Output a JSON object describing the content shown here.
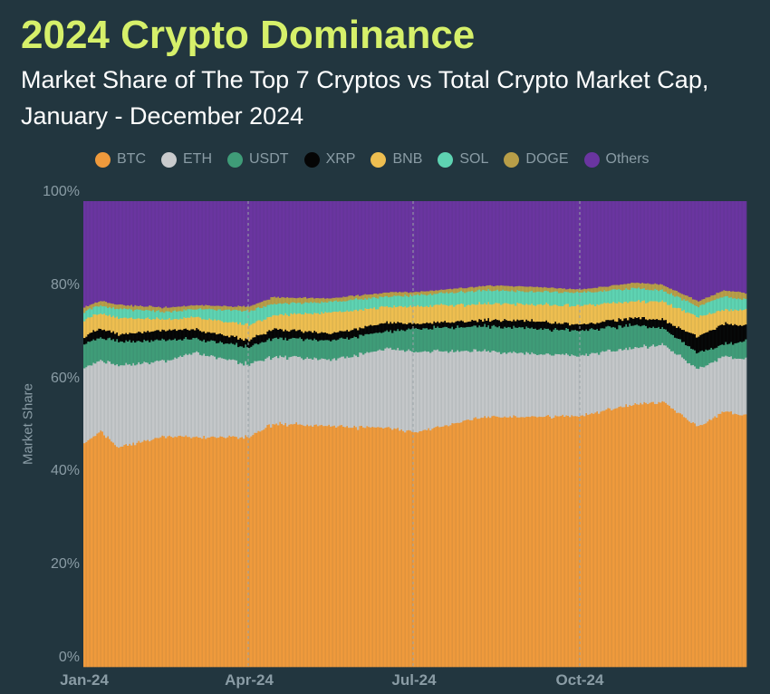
{
  "header": {
    "title": "2024 Crypto Dominance",
    "subtitle": "Market Share of The Top 7 Cryptos vs Total Crypto Market Cap, January - December 2024"
  },
  "chart_data": {
    "type": "area",
    "stacked": true,
    "title": "2024 Crypto Dominance",
    "subtitle": "Market Share of The Top 7 Cryptos vs Total Crypto Market Cap, January - December 2024",
    "xlabel": "",
    "ylabel": "Market Share",
    "ylim": [
      0,
      100
    ],
    "yticks": [
      "0%",
      "20%",
      "40%",
      "60%",
      "80%",
      "100%"
    ],
    "xticks": [
      {
        "label": "Jan-24",
        "day": 0
      },
      {
        "label": "Apr-24",
        "day": 91
      },
      {
        "label": "Jul-24",
        "day": 182
      },
      {
        "label": "Oct-24",
        "day": 274
      }
    ],
    "x_days_total": 366,
    "legend_position": "top",
    "grid": "vertical dashed at quarter starts",
    "x_sample_days": [
      0,
      9,
      18,
      46,
      61,
      91,
      104,
      136,
      169,
      182,
      223,
      246,
      274,
      304,
      319,
      339,
      353,
      365
    ],
    "cumulative_tops_note": "series values are individual shares (%) at each sample day; stacked in legend order",
    "series": [
      {
        "name": "BTC",
        "color": "#ef9a3c",
        "values": [
          47.9,
          50.8,
          47.3,
          49.6,
          49.5,
          49.4,
          52.3,
          51.7,
          51.4,
          50.4,
          53.9,
          53.7,
          53.9,
          56.6,
          57.0,
          51.4,
          54.9,
          53.9
        ]
      },
      {
        "name": "ETH",
        "color": "#c4c7c9",
        "values": [
          16.1,
          15.2,
          17.5,
          16.2,
          18.2,
          15.6,
          14.4,
          14.3,
          17.1,
          17.3,
          14.0,
          13.6,
          13.0,
          12.1,
          12.3,
          12.4,
          11.8,
          12.1
        ]
      },
      {
        "name": "USDT",
        "color": "#3f9c78",
        "values": [
          5.3,
          4.8,
          5.2,
          4.4,
          2.9,
          3.7,
          3.9,
          4.2,
          3.7,
          4.9,
          5.3,
          5.5,
          5.3,
          4.8,
          3.5,
          3.5,
          2.6,
          3.8
        ]
      },
      {
        "name": "XRP",
        "color": "#050505",
        "values": [
          1.5,
          2.0,
          1.6,
          2.2,
          1.9,
          1.5,
          2.0,
          1.4,
          1.9,
          1.1,
          1.3,
          1.7,
          1.3,
          1.6,
          1.7,
          3.5,
          4.4,
          3.4
        ]
      },
      {
        "name": "BNB",
        "color": "#eebe50",
        "values": [
          3.7,
          3.3,
          3.5,
          2.3,
          2.6,
          3.3,
          2.9,
          4.5,
          3.3,
          3.7,
          3.5,
          3.5,
          4.1,
          3.5,
          3.9,
          4.3,
          3.0,
          3.5
        ]
      },
      {
        "name": "SOL",
        "color": "#5ed3b2",
        "values": [
          2.0,
          1.5,
          1.9,
          1.6,
          1.8,
          3.0,
          2.5,
          2.3,
          2.2,
          2.4,
          2.9,
          2.7,
          2.8,
          2.7,
          2.5,
          2.3,
          2.9,
          2.3
        ]
      },
      {
        "name": "DOGE",
        "color": "#b89e48",
        "values": [
          0.9,
          1.0,
          0.8,
          0.9,
          0.8,
          0.9,
          1.4,
          0.8,
          0.9,
          0.7,
          1.0,
          1.0,
          0.7,
          1.2,
          1.2,
          1.2,
          1.3,
          1.4
        ]
      },
      {
        "name": "Others",
        "color": "#6a35a0",
        "values": [
          22.6,
          21.4,
          22.2,
          22.8,
          22.3,
          22.6,
          20.6,
          20.8,
          19.5,
          19.5,
          18.1,
          18.3,
          18.9,
          17.5,
          17.9,
          21.4,
          19.1,
          19.6
        ]
      }
    ]
  },
  "legend": [
    {
      "label": "BTC",
      "color": "#ef9a3c"
    },
    {
      "label": "ETH",
      "color": "#c9cbcd"
    },
    {
      "label": "USDT",
      "color": "#3f9c78"
    },
    {
      "label": "XRP",
      "color": "#050505"
    },
    {
      "label": "BNB",
      "color": "#eebe50"
    },
    {
      "label": "SOL",
      "color": "#5ed3b2"
    },
    {
      "label": "DOGE",
      "color": "#b89e48"
    },
    {
      "label": "Others",
      "color": "#6a35a0"
    }
  ],
  "colors": {
    "background": "#22363f",
    "title": "#d6f06a",
    "axis_text": "#8a9ca5"
  }
}
